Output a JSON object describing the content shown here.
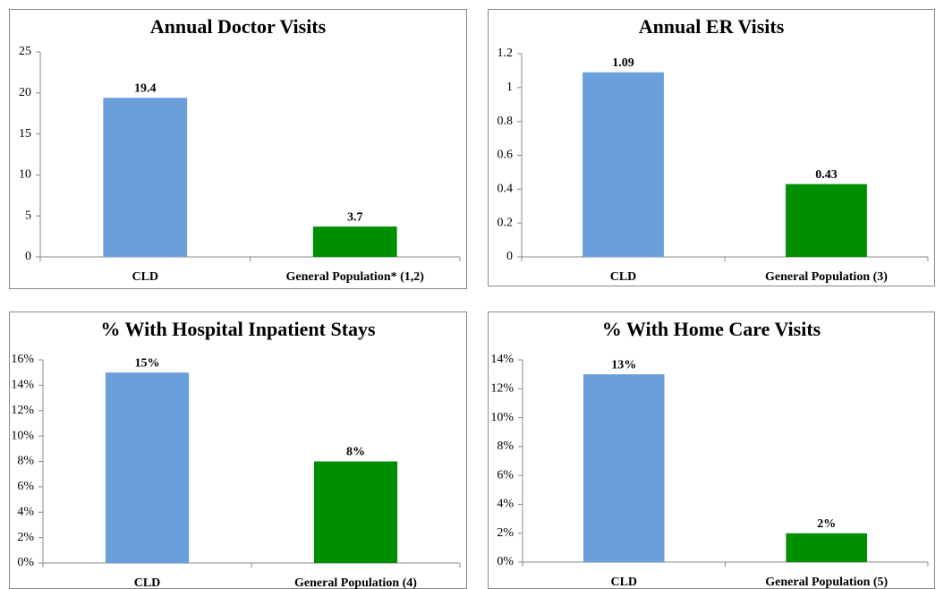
{
  "chart_data": [
    {
      "type": "bar",
      "title": "Annual Doctor Visits",
      "categories": [
        "CLD",
        "General Population* (1,2)"
      ],
      "values": [
        19.4,
        3.7
      ],
      "colors": [
        "#6a9fdc",
        "#008f00"
      ],
      "ylim": [
        0,
        25
      ],
      "yticks": [
        0,
        5,
        10,
        15,
        20,
        25
      ]
    },
    {
      "type": "bar",
      "title": "Annual ER Visits",
      "categories": [
        "CLD",
        "General Population (3)"
      ],
      "values": [
        1.09,
        0.43
      ],
      "colors": [
        "#6a9fdc",
        "#008f00"
      ],
      "ylim": [
        0,
        1.2
      ],
      "yticks": [
        0,
        0.2,
        0.4,
        0.6,
        0.8,
        1,
        1.2
      ]
    },
    {
      "type": "bar",
      "title": "% With Hospital Inpatient Stays",
      "categories": [
        "CLD",
        "General Population (4)"
      ],
      "values": [
        15,
        8
      ],
      "value_labels": [
        "15%",
        "8%"
      ],
      "colors": [
        "#6a9fdc",
        "#008f00"
      ],
      "ylim": [
        0,
        16
      ],
      "yticks": [
        {
          "value": 0,
          "label": "0%"
        },
        {
          "value": 2,
          "label": "2%"
        },
        {
          "value": 4,
          "label": "4%"
        },
        {
          "value": 6,
          "label": "6%"
        },
        {
          "value": 8,
          "label": "8%"
        },
        {
          "value": 10,
          "label": "10%"
        },
        {
          "value": 12,
          "label": "12%"
        },
        {
          "value": 14,
          "label": "14%"
        },
        {
          "value": 16,
          "label": "16%"
        }
      ]
    },
    {
      "type": "bar",
      "title": "% With Home Care Visits",
      "categories": [
        "CLD",
        "General Population (5)"
      ],
      "values": [
        13,
        2
      ],
      "value_labels": [
        "13%",
        "2%"
      ],
      "colors": [
        "#6a9fdc",
        "#008f00"
      ],
      "ylim": [
        0,
        14
      ],
      "yticks": [
        {
          "value": 0,
          "label": "0%"
        },
        {
          "value": 2,
          "label": "2%"
        },
        {
          "value": 4,
          "label": "4%"
        },
        {
          "value": 6,
          "label": "6%"
        },
        {
          "value": 8,
          "label": "8%"
        },
        {
          "value": 10,
          "label": "10%"
        },
        {
          "value": 12,
          "label": "12%"
        },
        {
          "value": 14,
          "label": "14%"
        }
      ]
    }
  ]
}
